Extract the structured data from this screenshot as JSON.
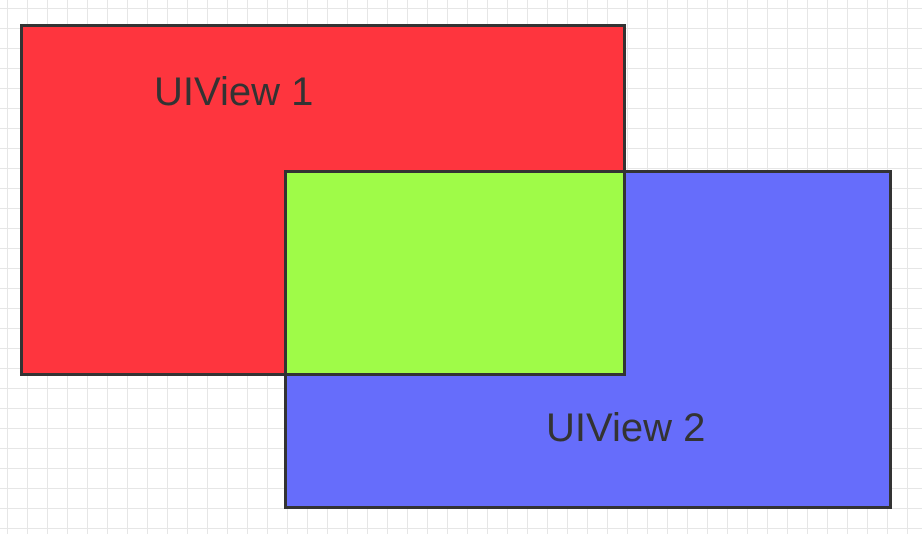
{
  "diagram": {
    "view1": {
      "label": "UIView 1",
      "fill": "#fe353e"
    },
    "view2": {
      "label": "UIView 2",
      "fill": "#666dfb"
    },
    "overlap": {
      "fill": "#9ffb48"
    },
    "border_color": "#333333",
    "grid_color": "#e6e6e6"
  }
}
